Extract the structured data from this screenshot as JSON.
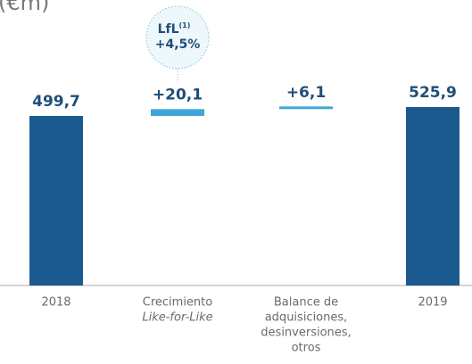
{
  "chart_data": {
    "type": "waterfall",
    "title": "(€m)",
    "categories": [
      [
        "2018"
      ],
      [
        "Crecimiento",
        "Like-for-Like"
      ],
      [
        "Balance de",
        "adquisiciones,",
        "desinversiones,",
        "otros"
      ],
      [
        "2019"
      ]
    ],
    "values": [
      499.7,
      20.1,
      6.1,
      525.9
    ],
    "value_labels": [
      "499,7",
      "+20,1",
      "+6,1",
      "525,9"
    ],
    "totals": [
      true,
      false,
      false,
      true
    ],
    "total_color": "#1b5a8e",
    "increment_color": "#3fa6da",
    "annotation": {
      "category": 1,
      "title": "LfL",
      "note": "(1)",
      "text": "+4,5%"
    }
  }
}
